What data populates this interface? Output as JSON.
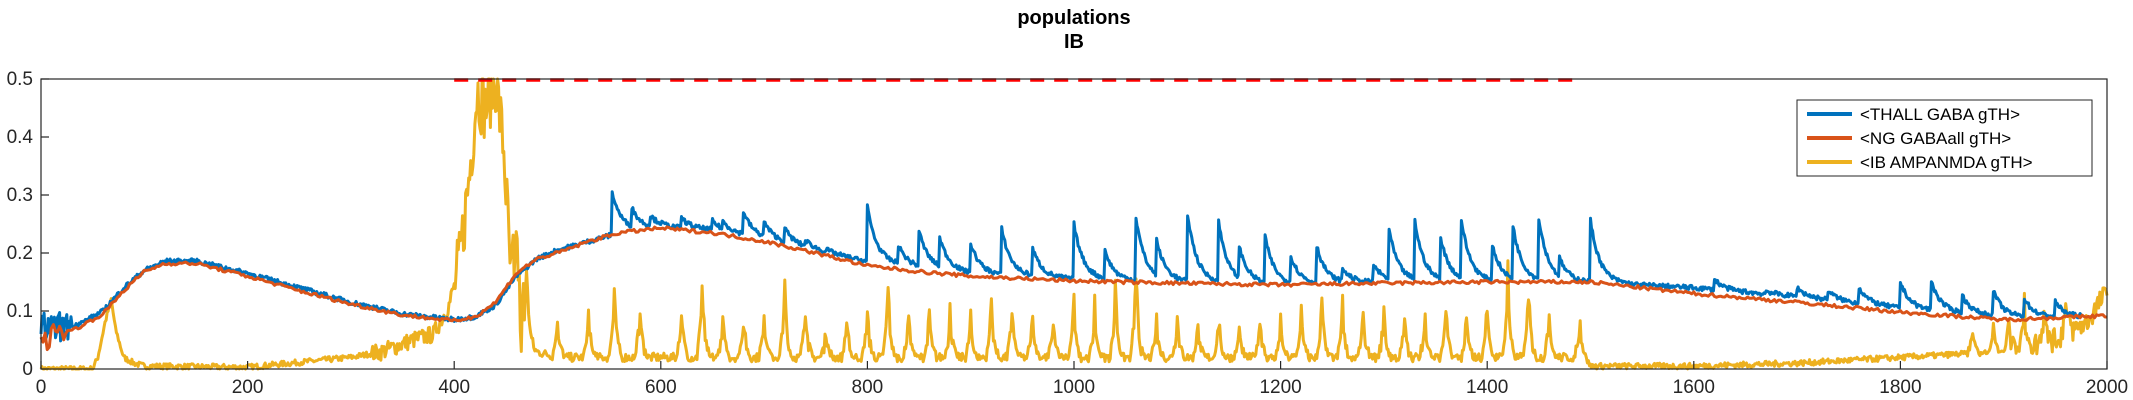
{
  "chart_data": {
    "type": "line",
    "title_lines": [
      "populations",
      "IB"
    ],
    "xlabel": "",
    "ylabel": "",
    "xlim": [
      0,
      2000
    ],
    "ylim": [
      0,
      0.5
    ],
    "x_ticks": [
      0,
      200,
      400,
      600,
      800,
      1000,
      1200,
      1400,
      1600,
      1800,
      2000
    ],
    "y_ticks": [
      0,
      0.1,
      0.2,
      0.3,
      0.4,
      0.5
    ],
    "y_tick_labels": [
      "0",
      "0.1",
      "0.2",
      "0.3",
      "0.4",
      "0.5"
    ],
    "grid": false,
    "legend_position": "top-right",
    "reference_line": {
      "style": "dashed",
      "color": "#ff0000",
      "y": 0.5,
      "x_start": 400,
      "x_end": 1490
    },
    "series": [
      {
        "name": "<THALL GABA gTH>",
        "color": "#0072bd",
        "baseline_x": [
          0,
          20,
          40,
          60,
          80,
          100,
          120,
          150,
          200,
          250,
          300,
          350,
          400,
          420,
          440,
          460,
          480,
          500,
          530,
          560,
          600,
          650,
          700,
          750,
          800,
          850,
          900,
          1000,
          1100,
          1200,
          1300,
          1400,
          1500,
          1550,
          1600,
          1700,
          1800,
          1900,
          1975
        ],
        "baseline_y": [
          0.07,
          0.07,
          0.08,
          0.1,
          0.14,
          0.17,
          0.186,
          0.186,
          0.165,
          0.14,
          0.115,
          0.095,
          0.085,
          0.09,
          0.11,
          0.16,
          0.19,
          0.205,
          0.22,
          0.235,
          0.245,
          0.24,
          0.225,
          0.205,
          0.185,
          0.175,
          0.165,
          0.155,
          0.15,
          0.145,
          0.15,
          0.15,
          0.15,
          0.145,
          0.14,
          0.125,
          0.105,
          0.09,
          0.09
        ],
        "spike_times": [
          553,
          572,
          590,
          620,
          650,
          660,
          680,
          700,
          720,
          740,
          760,
          800,
          830,
          850,
          870,
          900,
          930,
          960,
          1000,
          1030,
          1060,
          1080,
          1110,
          1140,
          1160,
          1185,
          1210,
          1235,
          1260,
          1290,
          1305,
          1330,
          1355,
          1375,
          1405,
          1425,
          1450,
          1470,
          1500,
          1620,
          1670,
          1700,
          1730,
          1760,
          1800,
          1830,
          1860,
          1890,
          1920,
          1950
        ],
        "spike_peaks": [
          0.305,
          0.27,
          0.26,
          0.26,
          0.255,
          0.25,
          0.27,
          0.25,
          0.24,
          0.22,
          0.205,
          0.28,
          0.21,
          0.235,
          0.22,
          0.215,
          0.24,
          0.205,
          0.25,
          0.2,
          0.26,
          0.21,
          0.265,
          0.25,
          0.2,
          0.225,
          0.19,
          0.21,
          0.17,
          0.18,
          0.235,
          0.25,
          0.22,
          0.25,
          0.21,
          0.24,
          0.255,
          0.18,
          0.255,
          0.155,
          0.135,
          0.14,
          0.135,
          0.14,
          0.15,
          0.15,
          0.125,
          0.135,
          0.12,
          0.115
        ]
      },
      {
        "name": "<NG GABAall gTH>",
        "color": "#d95319",
        "baseline_x": [
          0,
          20,
          40,
          60,
          80,
          100,
          120,
          150,
          200,
          250,
          300,
          350,
          400,
          420,
          440,
          460,
          480,
          500,
          530,
          560,
          600,
          650,
          700,
          750,
          800,
          850,
          900,
          1000,
          1100,
          1200,
          1300,
          1400,
          1500,
          1550,
          1600,
          1700,
          1800,
          1900,
          2000
        ],
        "baseline_y": [
          0.05,
          0.06,
          0.075,
          0.095,
          0.135,
          0.168,
          0.182,
          0.182,
          0.16,
          0.135,
          0.112,
          0.093,
          0.083,
          0.09,
          0.115,
          0.165,
          0.19,
          0.2,
          0.22,
          0.235,
          0.243,
          0.235,
          0.22,
          0.2,
          0.178,
          0.168,
          0.16,
          0.152,
          0.148,
          0.145,
          0.148,
          0.15,
          0.15,
          0.14,
          0.13,
          0.115,
          0.098,
          0.085,
          0.092
        ]
      },
      {
        "name": "<IB AMPANMDA gTH>",
        "color": "#edb120",
        "baseline_x": [
          0,
          50,
          55,
          62,
          68,
          72,
          80,
          90,
          100,
          200,
          300,
          330,
          360,
          380,
          395,
          405,
          415,
          422,
          430,
          440,
          448,
          455,
          462,
          470,
          480,
          500,
          600,
          800,
          1000,
          1200,
          1400,
          1495,
          1500,
          1600,
          1700,
          1800,
          1900,
          1950,
          1980,
          1995,
          2000
        ],
        "baseline_y": [
          0.0,
          0.0,
          0.02,
          0.08,
          0.12,
          0.07,
          0.02,
          0.01,
          0.005,
          0.003,
          0.02,
          0.03,
          0.05,
          0.06,
          0.11,
          0.18,
          0.34,
          0.48,
          0.45,
          0.5,
          0.38,
          0.15,
          0.09,
          0.05,
          0.03,
          0.02,
          0.02,
          0.02,
          0.02,
          0.02,
          0.02,
          0.02,
          0.005,
          0.005,
          0.01,
          0.02,
          0.03,
          0.05,
          0.08,
          0.12,
          0.13
        ],
        "spike_times": [
          460,
          470,
          500,
          530,
          555,
          580,
          620,
          640,
          660,
          680,
          700,
          720,
          740,
          760,
          780,
          800,
          820,
          840,
          860,
          880,
          900,
          920,
          940,
          960,
          980,
          1000,
          1020,
          1040,
          1060,
          1080,
          1100,
          1120,
          1140,
          1160,
          1180,
          1200,
          1220,
          1240,
          1260,
          1280,
          1300,
          1320,
          1340,
          1360,
          1380,
          1400,
          1420,
          1440,
          1460,
          1490,
          1870,
          1890,
          1905,
          1920,
          1940,
          1960
        ],
        "spike_peaks": [
          0.18,
          0.16,
          0.09,
          0.09,
          0.16,
          0.11,
          0.1,
          0.16,
          0.08,
          0.09,
          0.1,
          0.15,
          0.12,
          0.06,
          0.08,
          0.1,
          0.15,
          0.1,
          0.09,
          0.1,
          0.08,
          0.12,
          0.1,
          0.09,
          0.08,
          0.12,
          0.1,
          0.15,
          0.18,
          0.08,
          0.09,
          0.07,
          0.08,
          0.06,
          0.09,
          0.07,
          0.1,
          0.12,
          0.11,
          0.09,
          0.1,
          0.08,
          0.09,
          0.11,
          0.08,
          0.12,
          0.18,
          0.15,
          0.1,
          0.08,
          0.05,
          0.06,
          0.07,
          0.1,
          0.09,
          0.08
        ]
      }
    ]
  }
}
